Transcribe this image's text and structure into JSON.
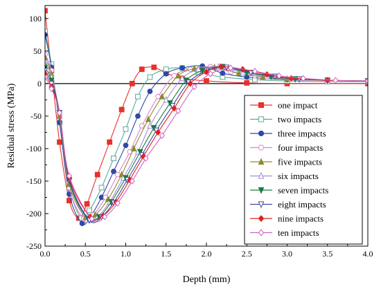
{
  "chart_data": {
    "type": "line",
    "title": "",
    "xlabel": "Depth  (mm)",
    "ylabel": "Residual stress (MPa)",
    "xlim": [
      0,
      4.0
    ],
    "ylim": [
      -250,
      120
    ],
    "x_ticks": [
      "0.0",
      "0.5",
      "1.0",
      "1.5",
      "2.0",
      "2.5",
      "3.0",
      "3.5",
      "4.0"
    ],
    "y_ticks": [
      "100",
      "50",
      "0",
      "-50",
      "-100",
      "-150",
      "-200",
      "-250"
    ],
    "grid": false,
    "legend_position": "right",
    "zero_line": true,
    "series": [
      {
        "name": "one impact",
        "color": "#e8312a",
        "marker": "square-filled",
        "points": [
          [
            0,
            112
          ],
          [
            0.08,
            20
          ],
          [
            0.18,
            -90
          ],
          [
            0.3,
            -180
          ],
          [
            0.42,
            -207
          ],
          [
            0.52,
            -185
          ],
          [
            0.65,
            -140
          ],
          [
            0.8,
            -90
          ],
          [
            0.95,
            -40
          ],
          [
            1.08,
            0
          ],
          [
            1.2,
            22
          ],
          [
            1.35,
            25
          ],
          [
            1.5,
            16
          ],
          [
            1.7,
            8
          ],
          [
            2.0,
            4
          ],
          [
            2.5,
            1
          ],
          [
            3.0,
            0
          ],
          [
            4.0,
            0
          ]
        ]
      },
      {
        "name": "two impacts",
        "color": "#5aa898",
        "marker": "square-open",
        "points": [
          [
            0,
            80
          ],
          [
            0.08,
            30
          ],
          [
            0.18,
            -60
          ],
          [
            0.3,
            -160
          ],
          [
            0.45,
            -207
          ],
          [
            0.55,
            -195
          ],
          [
            0.7,
            -160
          ],
          [
            0.85,
            -115
          ],
          [
            1.0,
            -70
          ],
          [
            1.15,
            -20
          ],
          [
            1.3,
            10
          ],
          [
            1.5,
            22
          ],
          [
            1.7,
            24
          ],
          [
            1.9,
            17
          ],
          [
            2.2,
            10
          ],
          [
            2.6,
            6
          ],
          [
            3.0,
            4
          ],
          [
            3.5,
            3
          ],
          [
            4.0,
            3
          ]
        ]
      },
      {
        "name": "three impacts",
        "color": "#2c4aa8",
        "marker": "circle-filled",
        "points": [
          [
            0,
            75
          ],
          [
            0.08,
            25
          ],
          [
            0.18,
            -60
          ],
          [
            0.3,
            -170
          ],
          [
            0.46,
            -215
          ],
          [
            0.56,
            -205
          ],
          [
            0.7,
            -175
          ],
          [
            0.85,
            -135
          ],
          [
            1.0,
            -95
          ],
          [
            1.15,
            -50
          ],
          [
            1.3,
            -12
          ],
          [
            1.5,
            15
          ],
          [
            1.7,
            24
          ],
          [
            1.95,
            27
          ],
          [
            2.2,
            16
          ],
          [
            2.5,
            10
          ],
          [
            3.0,
            6
          ],
          [
            3.5,
            5
          ],
          [
            4.0,
            4
          ]
        ]
      },
      {
        "name": "four impacts",
        "color": "#e47ed0",
        "marker": "circle-open",
        "points": [
          [
            0,
            45
          ],
          [
            0.08,
            20
          ],
          [
            0.18,
            -50
          ],
          [
            0.3,
            -160
          ],
          [
            0.48,
            -208
          ],
          [
            0.6,
            -202
          ],
          [
            0.75,
            -175
          ],
          [
            0.9,
            -140
          ],
          [
            1.05,
            -105
          ],
          [
            1.2,
            -65
          ],
          [
            1.4,
            -20
          ],
          [
            1.6,
            12
          ],
          [
            1.8,
            22
          ],
          [
            2.05,
            26
          ],
          [
            2.3,
            18
          ],
          [
            2.6,
            12
          ],
          [
            3.0,
            7
          ],
          [
            3.5,
            5
          ],
          [
            4.0,
            4
          ]
        ]
      },
      {
        "name": "five impacts",
        "color": "#8a8c28",
        "marker": "triangle-up-filled",
        "points": [
          [
            0,
            40
          ],
          [
            0.08,
            15
          ],
          [
            0.18,
            -50
          ],
          [
            0.3,
            -155
          ],
          [
            0.5,
            -206
          ],
          [
            0.62,
            -202
          ],
          [
            0.78,
            -178
          ],
          [
            0.95,
            -140
          ],
          [
            1.1,
            -100
          ],
          [
            1.28,
            -55
          ],
          [
            1.45,
            -20
          ],
          [
            1.65,
            12
          ],
          [
            1.85,
            23
          ],
          [
            2.1,
            25
          ],
          [
            2.4,
            16
          ],
          [
            2.7,
            10
          ],
          [
            3.0,
            7
          ],
          [
            3.5,
            5
          ],
          [
            4.0,
            4
          ]
        ]
      },
      {
        "name": "six impacts",
        "color": "#a68cd4",
        "marker": "triangle-up-open",
        "points": [
          [
            0,
            35
          ],
          [
            0.08,
            10
          ],
          [
            0.18,
            -45
          ],
          [
            0.3,
            -150
          ],
          [
            0.52,
            -210
          ],
          [
            0.65,
            -205
          ],
          [
            0.8,
            -182
          ],
          [
            0.97,
            -145
          ],
          [
            1.15,
            -105
          ],
          [
            1.3,
            -65
          ],
          [
            1.5,
            -25
          ],
          [
            1.7,
            8
          ],
          [
            1.9,
            22
          ],
          [
            2.15,
            26
          ],
          [
            2.45,
            17
          ],
          [
            2.75,
            11
          ],
          [
            3.05,
            7
          ],
          [
            3.5,
            5
          ],
          [
            4.0,
            4
          ]
        ]
      },
      {
        "name": "seven impacts",
        "color": "#1a7a44",
        "marker": "triangle-down-filled",
        "points": [
          [
            0,
            25
          ],
          [
            0.08,
            5
          ],
          [
            0.18,
            -45
          ],
          [
            0.3,
            -150
          ],
          [
            0.53,
            -208
          ],
          [
            0.67,
            -205
          ],
          [
            0.82,
            -182
          ],
          [
            1.0,
            -145
          ],
          [
            1.18,
            -105
          ],
          [
            1.35,
            -68
          ],
          [
            1.55,
            -30
          ],
          [
            1.75,
            5
          ],
          [
            1.95,
            20
          ],
          [
            2.2,
            26
          ],
          [
            2.5,
            17
          ],
          [
            2.8,
            11
          ],
          [
            3.1,
            7
          ],
          [
            3.5,
            5
          ],
          [
            4.0,
            4
          ]
        ]
      },
      {
        "name": "eight impacts",
        "color": "#40489e",
        "marker": "triangle-down-open",
        "points": [
          [
            0,
            20
          ],
          [
            0.08,
            0
          ],
          [
            0.18,
            -45
          ],
          [
            0.3,
            -148
          ],
          [
            0.55,
            -210
          ],
          [
            0.7,
            -205
          ],
          [
            0.85,
            -183
          ],
          [
            1.02,
            -148
          ],
          [
            1.2,
            -110
          ],
          [
            1.38,
            -72
          ],
          [
            1.58,
            -34
          ],
          [
            1.78,
            2
          ],
          [
            2.0,
            20
          ],
          [
            2.25,
            25
          ],
          [
            2.55,
            17
          ],
          [
            2.85,
            11
          ],
          [
            3.15,
            7
          ],
          [
            3.5,
            5
          ],
          [
            4.0,
            4
          ]
        ]
      },
      {
        "name": "nine impacts",
        "color": "#e02020",
        "marker": "diamond-filled",
        "points": [
          [
            0,
            15
          ],
          [
            0.08,
            -5
          ],
          [
            0.18,
            -45
          ],
          [
            0.3,
            -145
          ],
          [
            0.56,
            -205
          ],
          [
            0.72,
            -203
          ],
          [
            0.88,
            -182
          ],
          [
            1.05,
            -148
          ],
          [
            1.22,
            -112
          ],
          [
            1.4,
            -75
          ],
          [
            1.6,
            -38
          ],
          [
            1.8,
            0
          ],
          [
            2.0,
            18
          ],
          [
            2.18,
            26
          ],
          [
            2.45,
            22
          ],
          [
            2.75,
            14
          ],
          [
            3.05,
            8
          ],
          [
            3.5,
            5
          ],
          [
            4.0,
            4
          ]
        ]
      },
      {
        "name": "ten impacts",
        "color": "#d060c0",
        "marker": "diamond-open",
        "points": [
          [
            0,
            10
          ],
          [
            0.08,
            -8
          ],
          [
            0.18,
            -45
          ],
          [
            0.3,
            -142
          ],
          [
            0.58,
            -208
          ],
          [
            0.74,
            -205
          ],
          [
            0.9,
            -184
          ],
          [
            1.08,
            -150
          ],
          [
            1.25,
            -115
          ],
          [
            1.45,
            -80
          ],
          [
            1.65,
            -42
          ],
          [
            1.85,
            -5
          ],
          [
            2.05,
            15
          ],
          [
            2.3,
            24
          ],
          [
            2.6,
            19
          ],
          [
            2.9,
            12
          ],
          [
            3.2,
            8
          ],
          [
            3.6,
            5
          ],
          [
            4.0,
            4
          ]
        ]
      }
    ]
  }
}
